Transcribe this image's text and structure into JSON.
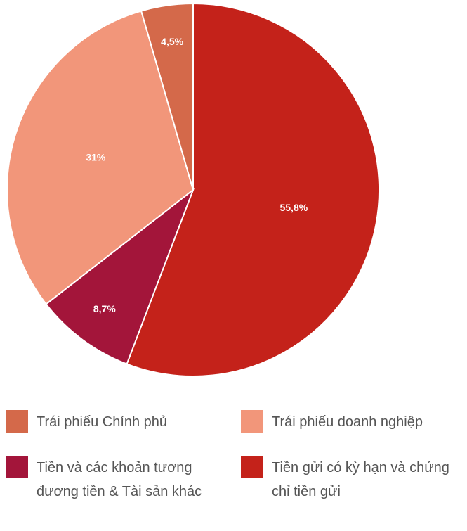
{
  "chart_data": {
    "type": "pie",
    "categories": [
      "Tiền gửi có kỳ hạn và chứng chỉ tiền gửi",
      "Tiền và các khoản tương đương tiền & Tài sản khác",
      "Trái phiếu doanh nghiệp",
      "Trái phiếu Chính phủ"
    ],
    "values": [
      55.8,
      8.7,
      31,
      4.5
    ],
    "value_labels": [
      "55,8%",
      "8,7%",
      "31%",
      "4,5%"
    ],
    "colors": [
      "#c4221a",
      "#a3153a",
      "#f2967a",
      "#d4694a"
    ],
    "legend": "bottom"
  }
}
